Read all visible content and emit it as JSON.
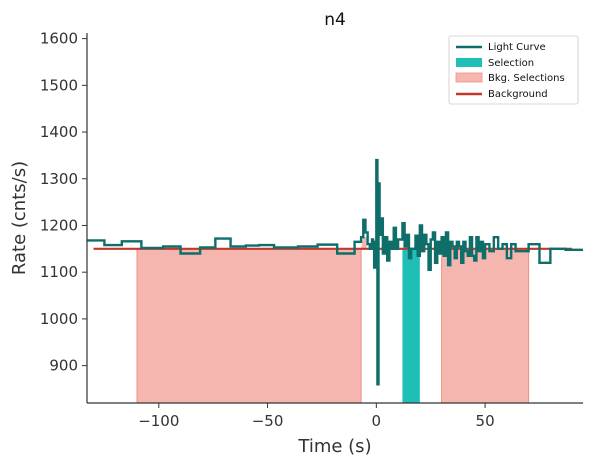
{
  "chart_data": {
    "type": "line",
    "title": "n4",
    "xlabel": "Time (s)",
    "ylabel": "Rate (cnts/s)",
    "xlim": [
      -133,
      95
    ],
    "ylim": [
      820,
      1612
    ],
    "xticks": [
      -100,
      -50,
      0,
      50
    ],
    "xtick_labels": [
      "−100",
      "−50",
      "0",
      "50"
    ],
    "yticks": [
      900,
      1000,
      1100,
      1200,
      1300,
      1400,
      1500,
      1600
    ],
    "ytick_labels": [
      "900",
      "1000",
      "1100",
      "1200",
      "1300",
      "1400",
      "1500",
      "1600"
    ],
    "grid": false,
    "legend_position": "top-right",
    "legend": [
      {
        "label": "Light Curve",
        "kind": "line",
        "color": "#0e6e6a"
      },
      {
        "label": "Selection",
        "kind": "patch",
        "color": "#1fbfb8"
      },
      {
        "label": "Bkg. Selections",
        "kind": "patch",
        "color": "#f5b6b0"
      },
      {
        "label": "Background",
        "kind": "line",
        "color": "#c0392b"
      }
    ],
    "series": [
      {
        "name": "Light Curve",
        "color": "#0e6e6a",
        "step": true,
        "x": [
          -133,
          -125,
          -117,
          -108,
          -98,
          -90,
          -81,
          -74,
          -67,
          -60,
          -54,
          -47,
          -36,
          -27,
          -18,
          -10,
          -7,
          -6,
          -5,
          -4,
          -3,
          -2,
          -1.5,
          -1,
          -0.5,
          0,
          0.5,
          1,
          1.5,
          2,
          3,
          4,
          5,
          6,
          7,
          8,
          9,
          10,
          11,
          12,
          13,
          14,
          15,
          16,
          17,
          18,
          19,
          20,
          21,
          22,
          23,
          24,
          25,
          26,
          27,
          28,
          29,
          30,
          31,
          32,
          33,
          34,
          35,
          36,
          37,
          38,
          39,
          40,
          41,
          42,
          43,
          44,
          45,
          46,
          47,
          48,
          49,
          50,
          52,
          54,
          56,
          58,
          60,
          62,
          64,
          70,
          75,
          80,
          87,
          95
        ],
        "y": [
          1168,
          1158,
          1166,
          1152,
          1155,
          1140,
          1153,
          1172,
          1155,
          1157,
          1158,
          1153,
          1155,
          1159,
          1140,
          1165,
          1175,
          1212,
          1185,
          1160,
          1150,
          1170,
          1165,
          1110,
          1130,
          1340,
          860,
          1290,
          1180,
          1215,
          1140,
          1175,
          1125,
          1165,
          1150,
          1195,
          1150,
          1170,
          1170,
          1205,
          1155,
          1180,
          1130,
          1150,
          1150,
          1178,
          1135,
          1200,
          1145,
          1180,
          1160,
          1105,
          1170,
          1185,
          1120,
          1165,
          1140,
          1175,
          1135,
          1185,
          1115,
          1165,
          1155,
          1130,
          1165,
          1155,
          1120,
          1165,
          1145,
          1135,
          1175,
          1135,
          1125,
          1175,
          1145,
          1165,
          1130,
          1160,
          1145,
          1175,
          1150,
          1160,
          1130,
          1160,
          1145,
          1160,
          1120,
          1150,
          1148,
          1148
        ]
      },
      {
        "name": "Background",
        "color": "#c0392b",
        "x": [
          -130,
          90
        ],
        "y": [
          1150,
          1150
        ]
      }
    ],
    "selection": {
      "name": "Selection",
      "color": "#1fbfb8",
      "x_range": [
        12,
        20
      ]
    },
    "background_selections": [
      {
        "name": "Bkg. Selections",
        "color": "#f5b6b0",
        "x_range": [
          -110,
          -7
        ]
      },
      {
        "name": "Bkg. Selections",
        "color": "#f5b6b0",
        "x_range": [
          30,
          70
        ]
      }
    ]
  }
}
